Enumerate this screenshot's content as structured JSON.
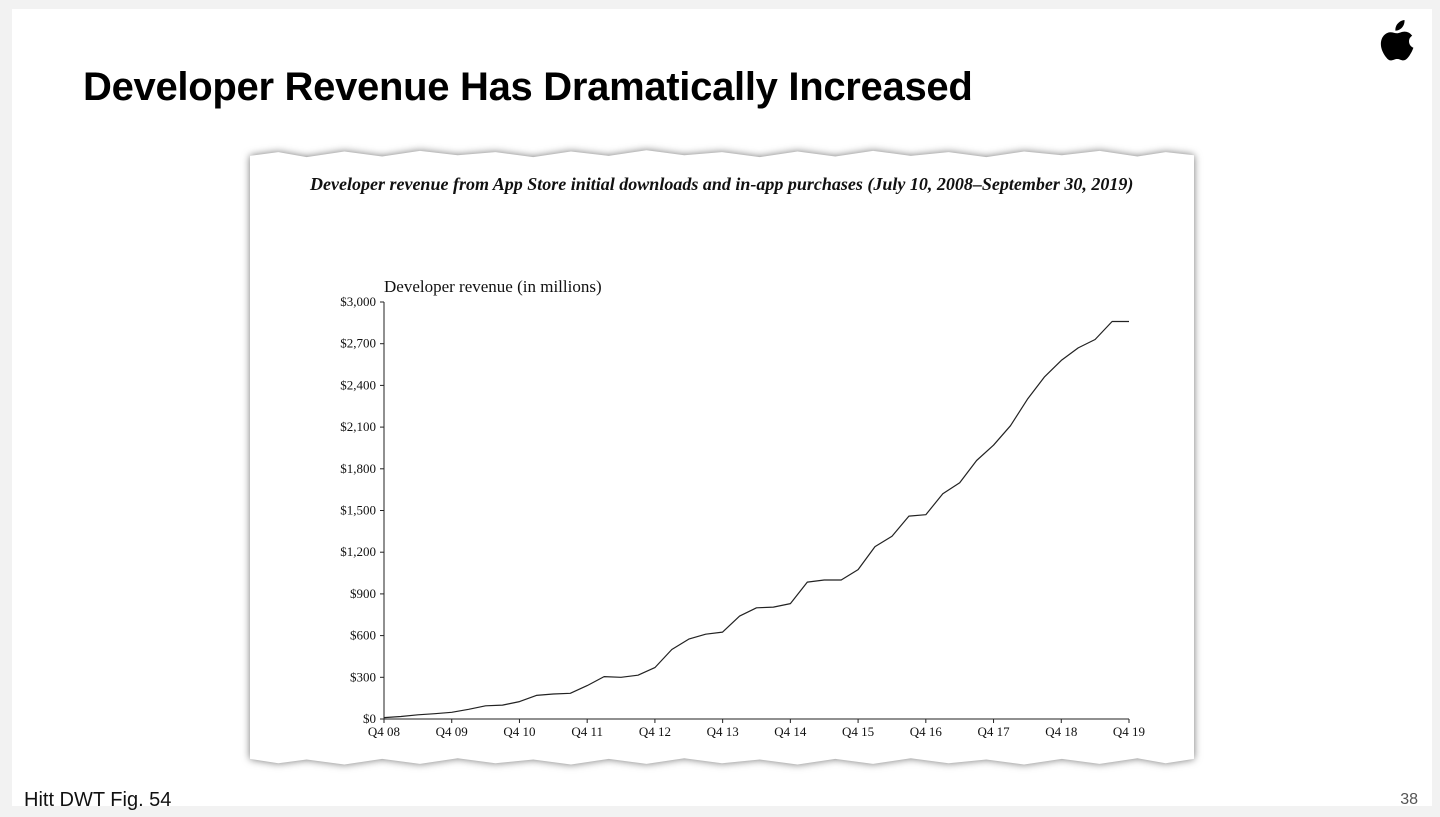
{
  "slide": {
    "title": "Developer Revenue Has Dramatically Increased",
    "footer_source": "Hitt DWT Fig. 54",
    "page_number": "38",
    "logo_icon": "apple-logo-icon"
  },
  "chart_data": {
    "type": "line",
    "title": "Developer revenue from App Store initial downloads and in-app purchases (July 10, 2008–September 30, 2019)",
    "ylabel": "Developer revenue (in millions)",
    "xlabel": "",
    "ylim": [
      0,
      3000
    ],
    "yticks": [
      "$0",
      "$300",
      "$600",
      "$900",
      "$1,200",
      "$1,500",
      "$1,800",
      "$2,100",
      "$2,400",
      "$2,700",
      "$3,000"
    ],
    "xticks": [
      "Q4 08",
      "Q4 09",
      "Q4 10",
      "Q4 11",
      "Q4 12",
      "Q4 13",
      "Q4 14",
      "Q4 15",
      "Q4 16",
      "Q4 17",
      "Q4 18",
      "Q4 19"
    ],
    "grid": false,
    "legend": "none",
    "line_color": "#222222",
    "series": [
      {
        "x": [
          "Q4 08",
          "Q1 09",
          "Q2 09",
          "Q3 09",
          "Q4 09",
          "Q1 10",
          "Q2 10",
          "Q3 10",
          "Q4 10",
          "Q1 11",
          "Q2 11",
          "Q3 11",
          "Q4 11",
          "Q1 12",
          "Q2 12",
          "Q3 12",
          "Q4 12",
          "Q1 13",
          "Q2 13",
          "Q3 13",
          "Q4 13",
          "Q1 14",
          "Q2 14",
          "Q3 14",
          "Q4 14",
          "Q1 15",
          "Q2 15",
          "Q3 15",
          "Q4 15",
          "Q1 16",
          "Q2 16",
          "Q3 16",
          "Q4 16",
          "Q1 17",
          "Q2 17",
          "Q3 17",
          "Q4 17",
          "Q1 18",
          "Q2 18",
          "Q3 18",
          "Q4 18",
          "Q1 19",
          "Q2 19",
          "Q3 19",
          "Q4 19"
        ],
        "values": [
          10,
          18,
          30,
          38,
          48,
          70,
          95,
          100,
          125,
          170,
          180,
          185,
          240,
          305,
          300,
          315,
          370,
          500,
          575,
          610,
          625,
          740,
          800,
          805,
          830,
          985,
          1000,
          1000,
          1075,
          1240,
          1315,
          1460,
          1470,
          1620,
          1700,
          1860,
          1970,
          2110,
          2300,
          2460,
          2580,
          2670,
          2730,
          2860,
          2860
        ]
      }
    ]
  }
}
